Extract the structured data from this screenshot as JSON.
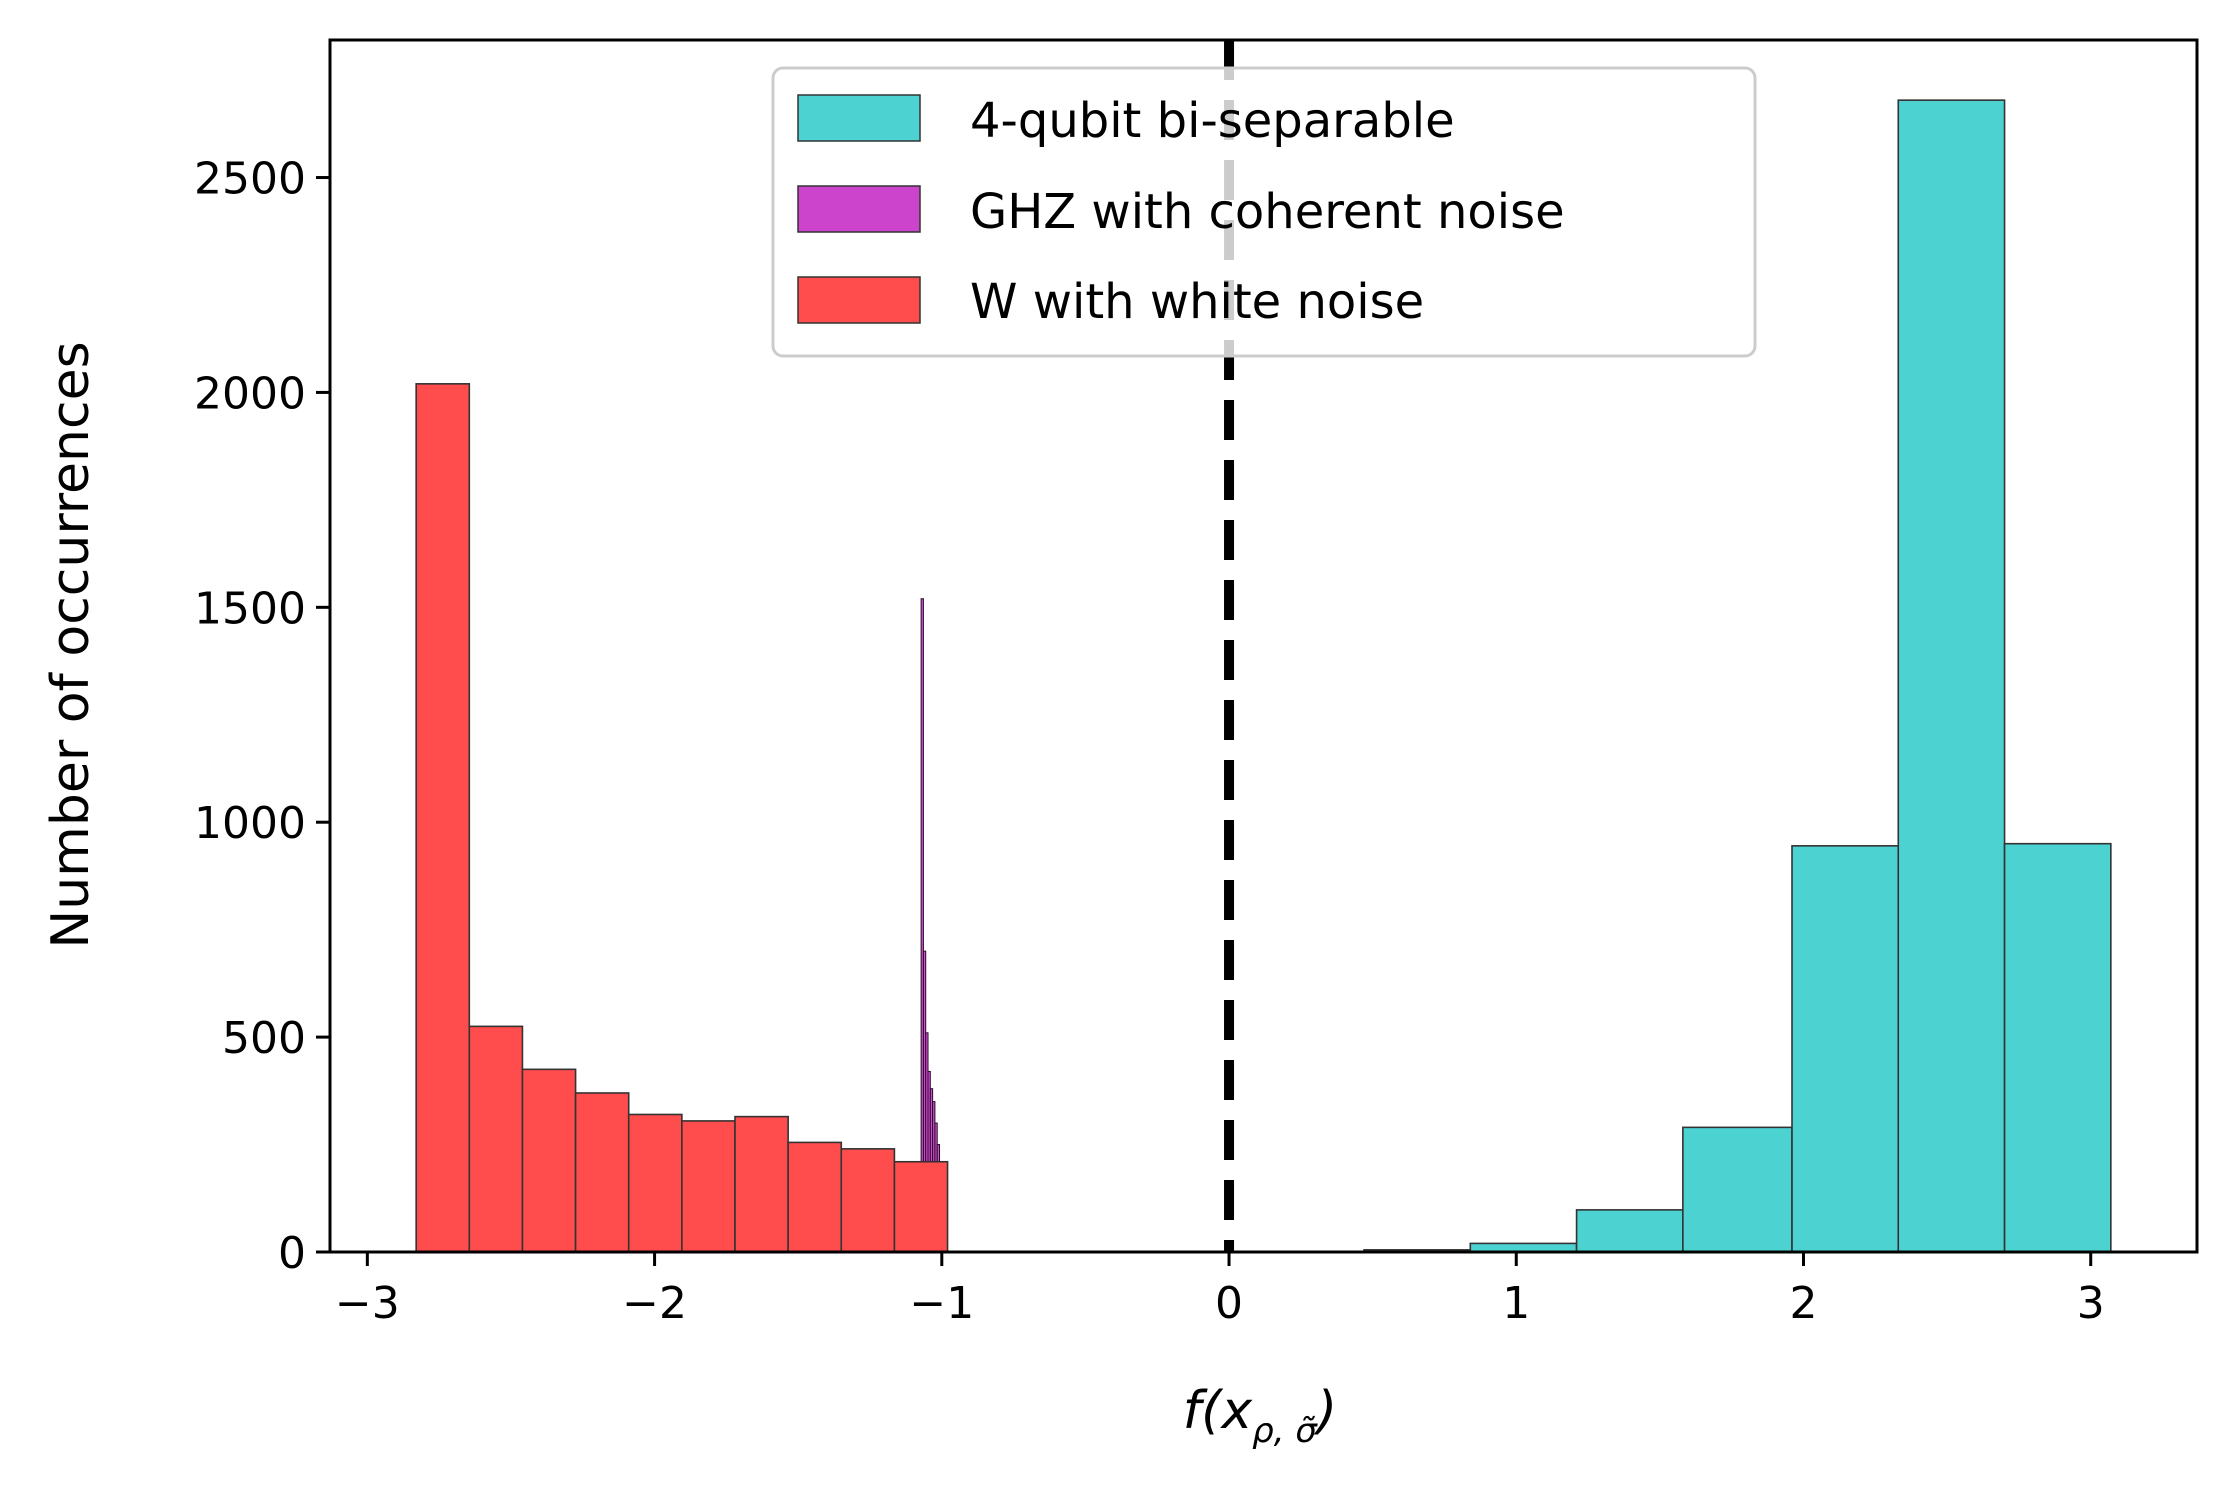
{
  "chart_data": {
    "type": "histogram",
    "xlabel": "f(x_{ρ, σ̃})",
    "ylabel": "Number of occurrences",
    "xlim": [
      -3.13,
      3.37
    ],
    "ylim": [
      0,
      2820
    ],
    "xticks": [
      -3,
      -2,
      -1,
      0,
      1,
      2,
      3
    ],
    "xtick_labels": [
      "−3",
      "−2",
      "−1",
      "0",
      "1",
      "2",
      "3"
    ],
    "yticks": [
      0,
      500,
      1000,
      1500,
      2000,
      2500
    ],
    "ytick_labels": [
      "0",
      "500",
      "1000",
      "1500",
      "2000",
      "2500"
    ],
    "threshold_line_x": 0,
    "legend_position": "top-center",
    "series": [
      {
        "name": "4-qubit bi-separable",
        "color": "#4dd2d2",
        "bins": [
          {
            "x0": 0.47,
            "x1": 0.84,
            "count": 5
          },
          {
            "x0": 0.84,
            "x1": 1.21,
            "count": 20
          },
          {
            "x0": 1.21,
            "x1": 1.58,
            "count": 98
          },
          {
            "x0": 1.58,
            "x1": 1.96,
            "count": 290
          },
          {
            "x0": 1.96,
            "x1": 2.33,
            "count": 945
          },
          {
            "x0": 2.33,
            "x1": 2.7,
            "count": 2680
          },
          {
            "x0": 2.7,
            "x1": 3.07,
            "count": 950
          }
        ]
      },
      {
        "name": "GHZ with coherent noise",
        "color": "#cc44cc",
        "bins": [
          {
            "x0": -1.072,
            "x1": -1.064,
            "count": 1520
          },
          {
            "x0": -1.064,
            "x1": -1.056,
            "count": 700
          },
          {
            "x0": -1.056,
            "x1": -1.048,
            "count": 510
          },
          {
            "x0": -1.048,
            "x1": -1.04,
            "count": 420
          },
          {
            "x0": -1.04,
            "x1": -1.032,
            "count": 380
          },
          {
            "x0": -1.032,
            "x1": -1.024,
            "count": 350
          },
          {
            "x0": -1.024,
            "x1": -1.016,
            "count": 300
          },
          {
            "x0": -1.016,
            "x1": -1.008,
            "count": 250
          }
        ]
      },
      {
        "name": "W with white noise",
        "color": "#ff4d4d",
        "bins": [
          {
            "x0": -2.83,
            "x1": -2.645,
            "count": 2020
          },
          {
            "x0": -2.645,
            "x1": -2.46,
            "count": 525
          },
          {
            "x0": -2.46,
            "x1": -2.275,
            "count": 425
          },
          {
            "x0": -2.275,
            "x1": -2.09,
            "count": 370
          },
          {
            "x0": -2.09,
            "x1": -1.905,
            "count": 320
          },
          {
            "x0": -1.905,
            "x1": -1.72,
            "count": 305
          },
          {
            "x0": -1.72,
            "x1": -1.535,
            "count": 315
          },
          {
            "x0": -1.535,
            "x1": -1.35,
            "count": 255
          },
          {
            "x0": -1.35,
            "x1": -1.165,
            "count": 240
          },
          {
            "x0": -1.165,
            "x1": -0.98,
            "count": 210
          }
        ]
      }
    ]
  }
}
